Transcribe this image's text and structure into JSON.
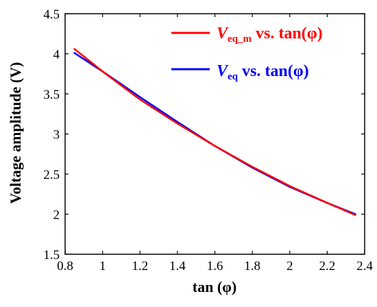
{
  "chart_data": {
    "type": "line",
    "title": "",
    "xlabel": "tan (φ)",
    "ylabel": "Voltage amplitude (V)",
    "xlim": [
      0.8,
      2.4
    ],
    "ylim": [
      1.5,
      4.5
    ],
    "xticks": [
      "0.8",
      "1",
      "1.2",
      "1.4",
      "1.6",
      "1.8",
      "2",
      "2.2",
      "2.4"
    ],
    "yticks": [
      "1.5",
      "2",
      "2.5",
      "3",
      "3.5",
      "4",
      "4.5"
    ],
    "grid": false,
    "legend_position": "top-right",
    "series": [
      {
        "name_var": "V",
        "name_sub": "eq_m",
        "name_rest": " vs. tan(φ)",
        "color": "#ff0000",
        "x": [
          0.85,
          1.0,
          1.2,
          1.4,
          1.6,
          1.8,
          2.0,
          2.2,
          2.35
        ],
        "y": [
          4.06,
          3.78,
          3.43,
          3.13,
          2.85,
          2.59,
          2.35,
          2.14,
          1.99
        ]
      },
      {
        "name_var": "V",
        "name_sub": "eq",
        "name_rest": " vs. tan(φ)",
        "color": "#0000ff",
        "x": [
          0.85,
          1.0,
          1.2,
          1.4,
          1.6,
          1.8,
          2.0,
          2.2,
          2.35
        ],
        "y": [
          4.01,
          3.78,
          3.46,
          3.15,
          2.85,
          2.58,
          2.34,
          2.14,
          2.0
        ]
      }
    ]
  }
}
